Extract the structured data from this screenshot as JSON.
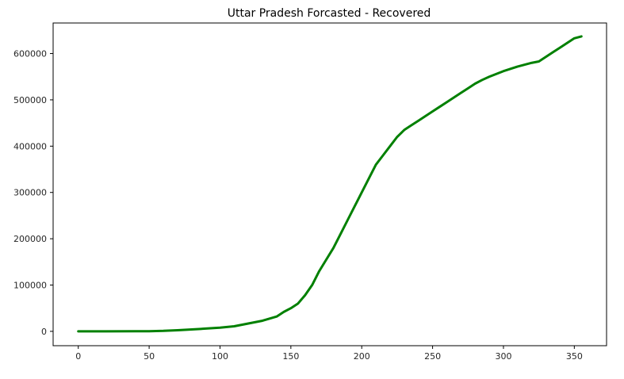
{
  "chart_data": {
    "type": "line",
    "title": "Uttar Pradesh Forcasted - Recovered",
    "xlabel": "",
    "ylabel": "",
    "xlim": [
      -17.75,
      372.75
    ],
    "ylim": [
      -31000,
      666000
    ],
    "x_ticks": [
      0,
      50,
      100,
      150,
      200,
      250,
      300,
      350
    ],
    "y_ticks": [
      0,
      100000,
      200000,
      300000,
      400000,
      500000,
      600000
    ],
    "x_tick_labels": [
      "0",
      "50",
      "100",
      "150",
      "200",
      "250",
      "300",
      "350"
    ],
    "y_tick_labels": [
      "0",
      "100000",
      "200000",
      "300000",
      "400000",
      "500000",
      "600000"
    ],
    "grid": false,
    "legend": "none",
    "series": [
      {
        "color": "#008000",
        "x": [
          0,
          20,
          40,
          50,
          60,
          70,
          80,
          90,
          100,
          110,
          120,
          130,
          140,
          145,
          150,
          155,
          160,
          165,
          170,
          175,
          180,
          185,
          190,
          195,
          200,
          205,
          210,
          215,
          220,
          225,
          230,
          235,
          240,
          245,
          250,
          255,
          260,
          265,
          270,
          275,
          280,
          285,
          290,
          295,
          300,
          305,
          310,
          315,
          320,
          325,
          330,
          335,
          340,
          345,
          350,
          355
        ],
        "y": [
          0,
          100,
          200,
          300,
          1000,
          2500,
          4000,
          6000,
          8000,
          11000,
          17000,
          23000,
          32000,
          42000,
          50000,
          60000,
          78000,
          100000,
          130000,
          155000,
          180000,
          210000,
          240000,
          270000,
          300000,
          330000,
          360000,
          380000,
          400000,
          420000,
          435000,
          445000,
          455000,
          465000,
          475000,
          485000,
          495000,
          505000,
          515000,
          525000,
          535000,
          543000,
          550000,
          556000,
          562000,
          567000,
          572000,
          576000,
          580000,
          583000,
          593000,
          603000,
          613000,
          623000,
          633000,
          637000
        ]
      }
    ]
  }
}
